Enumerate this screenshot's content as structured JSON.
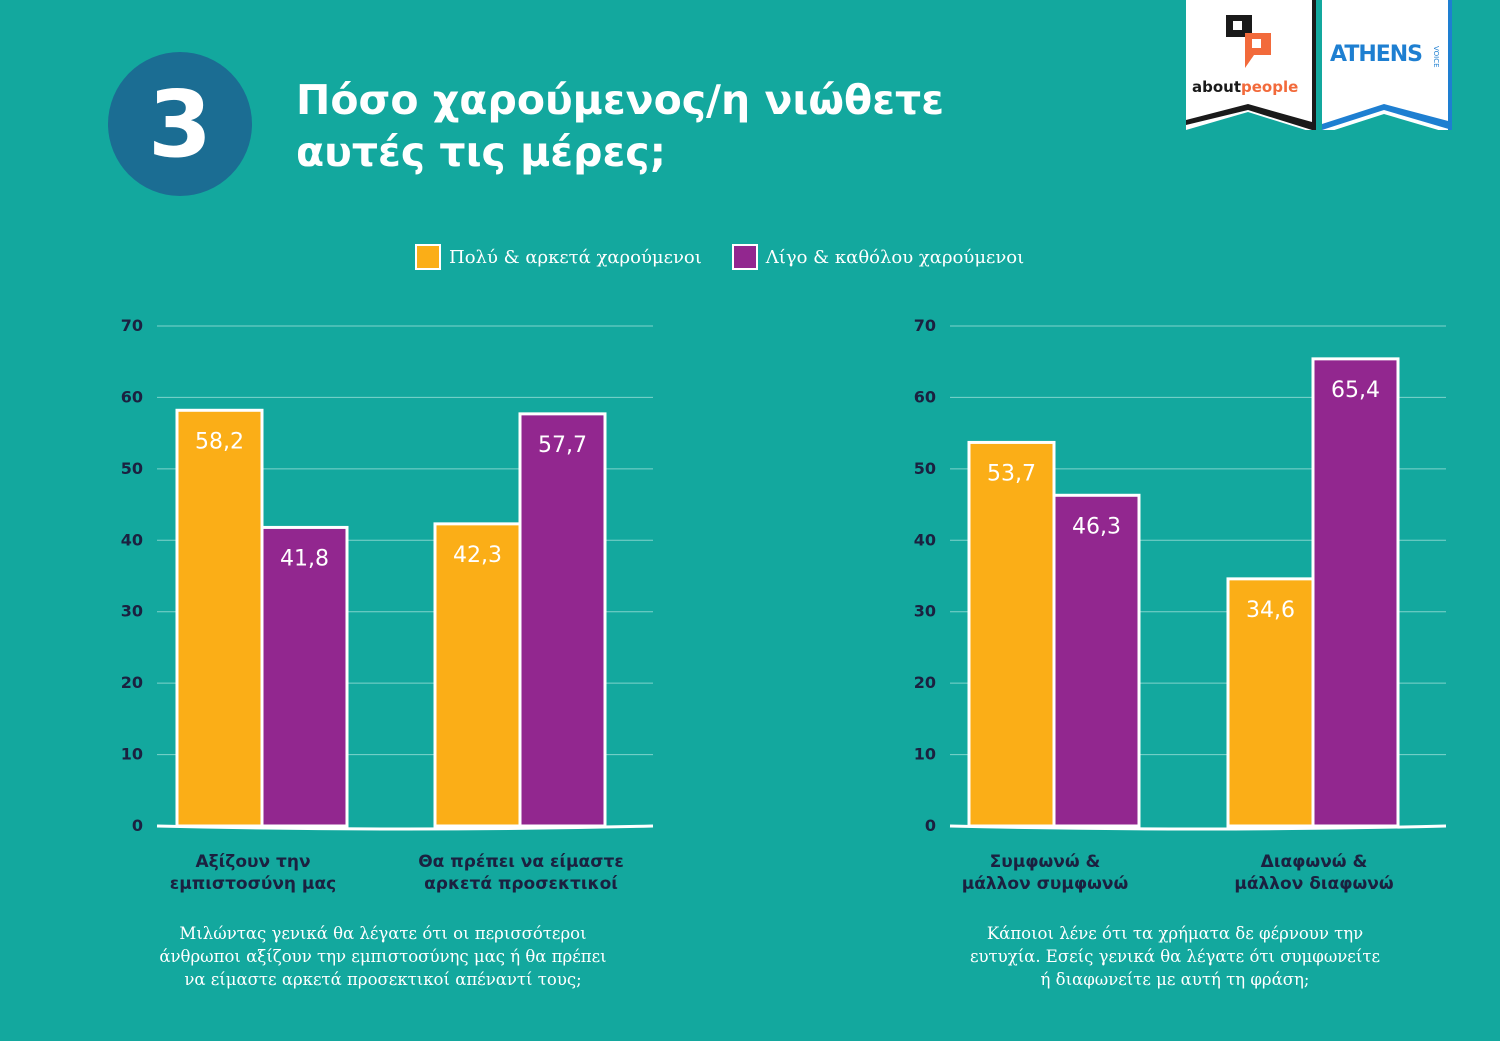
{
  "header": {
    "number": "3",
    "title_line1": "Πόσο χαρούμενος/η νιώθετε",
    "title_line2": "αυτές τις μέρες;"
  },
  "logos": {
    "aboutpeople_a": "about",
    "aboutpeople_b": "people",
    "athens": "ATHENS",
    "athens_sub": "VOICE"
  },
  "colors": {
    "background": "#13a89e",
    "orange": "#fbae17",
    "purple": "#92278f",
    "circle": "#1b6d93",
    "axis_text": "#1b2140"
  },
  "legend": [
    {
      "label": "Πολύ & αρκετά χαρούμενοι",
      "color": "#fbae17"
    },
    {
      "label": "Λίγο & καθόλου χαρούμενοι",
      "color": "#92278f"
    }
  ],
  "chart_data": [
    {
      "type": "bar",
      "ylim": [
        0,
        70
      ],
      "yticks": [
        0,
        10,
        20,
        30,
        40,
        50,
        60,
        70
      ],
      "grid": true,
      "legend_placement": "top",
      "categories": [
        {
          "line1": "Αξίζουν την",
          "line2": "εμπιστοσύνη μας"
        },
        {
          "line1": "Θα πρέπει να είμαστε",
          "line2": "αρκετά προσεκτικοί"
        }
      ],
      "bars": [
        {
          "values": [
            58.2,
            41.8
          ],
          "labels": [
            "58,2",
            "41,8"
          ]
        },
        {
          "values": [
            42.3,
            57.7
          ],
          "labels": [
            "42,3",
            "57,7"
          ]
        }
      ],
      "caption": [
        "Μιλώντας γενικά θα λέγατε ότι οι περισσότεροι",
        "άνθρωποι αξίζουν την εμπιστοσύνης μας ή θα πρέπει",
        "να είμαστε αρκετά προσεκτικοί απέναντί τους;"
      ]
    },
    {
      "type": "bar",
      "ylim": [
        0,
        70
      ],
      "yticks": [
        0,
        10,
        20,
        30,
        40,
        50,
        60,
        70
      ],
      "grid": true,
      "categories": [
        {
          "line1": "Συμφωνώ &",
          "line2": "μάλλον συμφωνώ"
        },
        {
          "line1": "Διαφωνώ &",
          "line2": "μάλλον διαφωνώ"
        }
      ],
      "bars": [
        {
          "values": [
            53.7,
            46.3
          ],
          "labels": [
            "53,7",
            "46,3"
          ]
        },
        {
          "values": [
            34.6,
            65.4
          ],
          "labels": [
            "34,6",
            "65,4"
          ]
        }
      ],
      "caption": [
        "Κάποιοι λένε ότι τα χρήματα δε φέρνουν την",
        "ευτυχία. Εσείς γενικά θα λέγατε ότι συμφωνείτε",
        "ή διαφωνείτε με αυτή τη φράση;"
      ]
    }
  ]
}
